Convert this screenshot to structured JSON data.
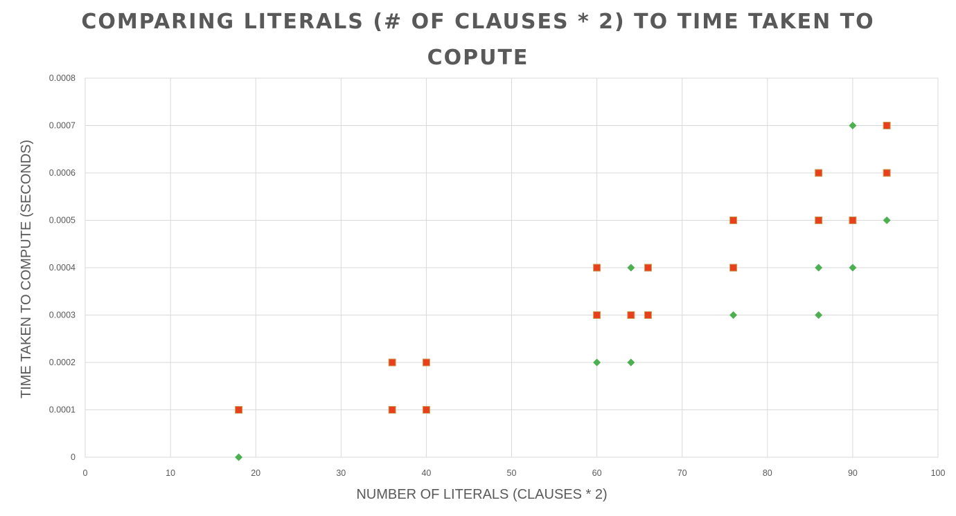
{
  "chart_data": {
    "type": "scatter",
    "title": "COMPARING LITERALS (# OF CLAUSES * 2) TO TIME TAKEN TO COPUTE",
    "xlabel": "NUMBER OF LITERALS (CLAUSES * 2)",
    "ylabel": "TIME TAKEN TO COMPUTE (SECONDS)",
    "xlim": [
      0,
      100
    ],
    "ylim": [
      0,
      0.0008
    ],
    "x_ticks": [
      "0",
      "10",
      "20",
      "30",
      "40",
      "50",
      "60",
      "70",
      "80",
      "90",
      "100"
    ],
    "y_ticks": [
      "0",
      "0.0001",
      "0.0002",
      "0.0003",
      "0.0004",
      "0.0005",
      "0.0006",
      "0.0007",
      "0.0008"
    ],
    "grid": true,
    "legend": "none",
    "series": [
      {
        "marker": "diamond",
        "color": "#4caf50",
        "points": [
          [
            18,
            0
          ],
          [
            60,
            0.0002
          ],
          [
            64,
            0.0002
          ],
          [
            64,
            0.0004
          ],
          [
            76,
            0.0003
          ],
          [
            86,
            0.0003
          ],
          [
            86,
            0.0004
          ],
          [
            90,
            0.0004
          ],
          [
            90,
            0.0007
          ],
          [
            94,
            0.0005
          ]
        ]
      },
      {
        "marker": "square",
        "color": "#e8401c",
        "points": [
          [
            18,
            0.0001
          ],
          [
            36,
            0.0001
          ],
          [
            36,
            0.0002
          ],
          [
            40,
            0.0001
          ],
          [
            40,
            0.0002
          ],
          [
            60,
            0.0003
          ],
          [
            60,
            0.0004
          ],
          [
            64,
            0.0003
          ],
          [
            66,
            0.0003
          ],
          [
            66,
            0.0004
          ],
          [
            76,
            0.0004
          ],
          [
            76,
            0.0005
          ],
          [
            86,
            0.0005
          ],
          [
            86,
            0.0006
          ],
          [
            90,
            0.0005
          ],
          [
            94,
            0.0006
          ],
          [
            94,
            0.0007
          ]
        ]
      }
    ]
  }
}
